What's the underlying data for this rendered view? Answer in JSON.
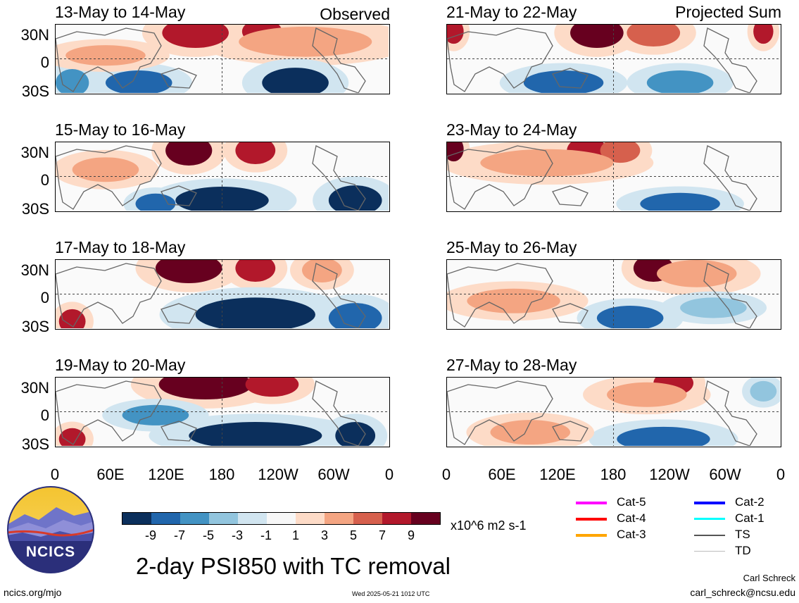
{
  "header": {
    "left_tag": "Observed",
    "right_tag": "Projected Sum"
  },
  "panels": {
    "left": [
      "13-May to 14-May",
      "15-May to 16-May",
      "17-May to 18-May",
      "19-May to 20-May"
    ],
    "right": [
      "21-May to 22-May",
      "23-May to 24-May",
      "25-May to 26-May",
      "27-May to 28-May"
    ]
  },
  "axes": {
    "y_ticks": [
      "30N",
      "0",
      "30S"
    ],
    "x_ticks": [
      "0",
      "60E",
      "120E",
      "180",
      "120W",
      "60W",
      "0"
    ]
  },
  "colorbar": {
    "labels": [
      "-9",
      "-7",
      "-5",
      "-3",
      "-1",
      "1",
      "3",
      "5",
      "7",
      "9"
    ],
    "colors": [
      "#0b2f5c",
      "#2166ac",
      "#4393c3",
      "#92c5de",
      "#d1e5f0",
      "#f7f7f7",
      "#fddbc7",
      "#f4a582",
      "#d6604d",
      "#b2182b",
      "#67001f"
    ],
    "units": "x10^6 m2 s-1"
  },
  "legend": {
    "items": [
      {
        "label": "Cat-5",
        "color": "#ff00ff"
      },
      {
        "label": "Cat-4",
        "color": "#ff0000"
      },
      {
        "label": "Cat-3",
        "color": "#ffa500"
      },
      {
        "label": "Cat-2",
        "color": "#0000ff"
      },
      {
        "label": "Cat-1",
        "color": "#00ffff"
      },
      {
        "label": "TS",
        "color": "#555555"
      },
      {
        "label": "TD",
        "color": "#bbbbbb"
      }
    ]
  },
  "logo": {
    "text": "NCICS"
  },
  "main_title": "2-day PSI850 with TC removal",
  "footer": {
    "url": "ncics.org/mjo",
    "timestamp": "Wed 2025-05-21 1012 UTC",
    "author": "Carl Schreck",
    "email": "carl_schreck@ncsu.edu"
  }
}
